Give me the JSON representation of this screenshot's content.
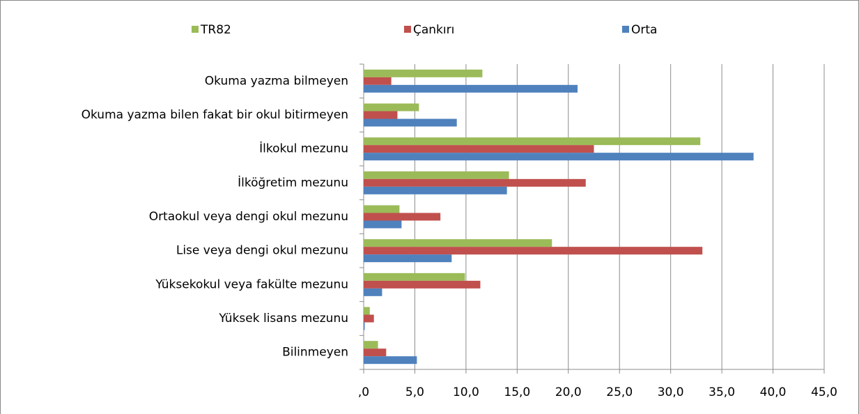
{
  "chart_data": {
    "type": "bar",
    "orientation": "horizontal",
    "categories": [
      "Okuma yazma bilmeyen",
      "Okuma yazma bilen fakat bir okul bitirmeyen",
      "İlkokul mezunu",
      "İlköğretim mezunu",
      "Ortaokul veya dengi okul mezunu",
      "Lise veya dengi okul mezunu",
      "Yüksekokul veya fakülte mezunu",
      "Yüksek lisans mezunu",
      "Bilinmeyen"
    ],
    "series": [
      {
        "name": "TR82",
        "color": "#9bbb59",
        "values": [
          11.6,
          5.4,
          32.9,
          14.2,
          3.5,
          18.4,
          9.9,
          0.6,
          1.4
        ]
      },
      {
        "name": "Çankırı",
        "color": "#c0504d",
        "values": [
          2.7,
          3.3,
          22.5,
          21.7,
          7.5,
          33.1,
          11.4,
          1.0,
          2.2
        ]
      },
      {
        "name": "Orta",
        "color": "#4f81bd",
        "values": [
          20.9,
          9.1,
          38.1,
          14.0,
          3.7,
          8.6,
          1.8,
          0.1,
          5.2
        ]
      }
    ],
    "xlim": [
      0,
      45
    ],
    "xticks": [
      {
        "value": 0,
        "label": ",0"
      },
      {
        "value": 5,
        "label": "5,0"
      },
      {
        "value": 10,
        "label": "10,0"
      },
      {
        "value": 15,
        "label": "15,0"
      },
      {
        "value": 20,
        "label": "20,0"
      },
      {
        "value": 25,
        "label": "25,0"
      },
      {
        "value": 30,
        "label": "30,0"
      },
      {
        "value": 35,
        "label": "35,0"
      },
      {
        "value": 40,
        "label": "40,0"
      },
      {
        "value": 45,
        "label": "45,0"
      }
    ],
    "grid": true,
    "legend": "top"
  }
}
